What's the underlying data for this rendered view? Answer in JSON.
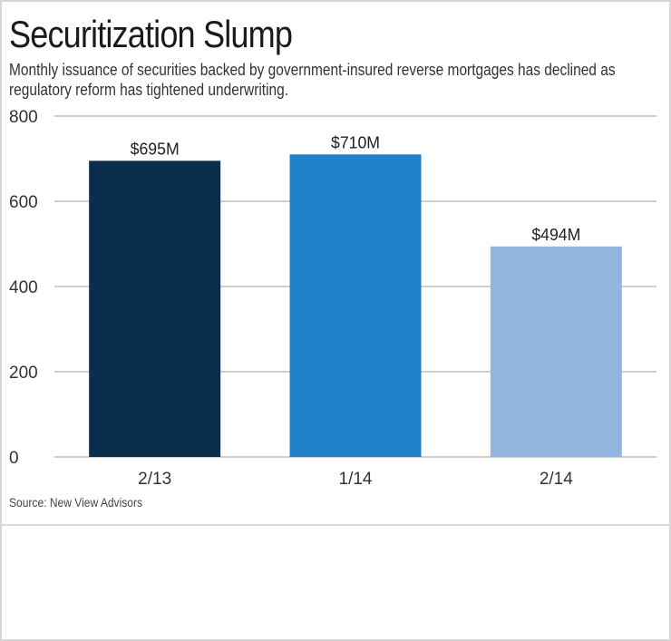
{
  "colors": {
    "bar_1": "#0b2e4f",
    "bar_2": "#1f80c8",
    "bar_3": "#92b6df",
    "grid": "#cfcfcf",
    "axis_text": "#333333"
  },
  "chart_data": {
    "type": "bar",
    "title": "Securitization Slump",
    "subtitle": "Monthly issuance of securities backed by government-insured reverse mortgages has declined as regulatory reform has tightened underwriting.",
    "categories": [
      "2/13",
      "1/14",
      "2/14"
    ],
    "values": [
      695,
      710,
      494
    ],
    "data_labels": [
      "$695M",
      "$710M",
      "$494M"
    ],
    "yticks": [
      0,
      200,
      400,
      600,
      800
    ],
    "ylim": [
      0,
      800
    ],
    "xlabel": "",
    "ylabel": "",
    "grid": true,
    "source": "Source: New View Advisors"
  }
}
